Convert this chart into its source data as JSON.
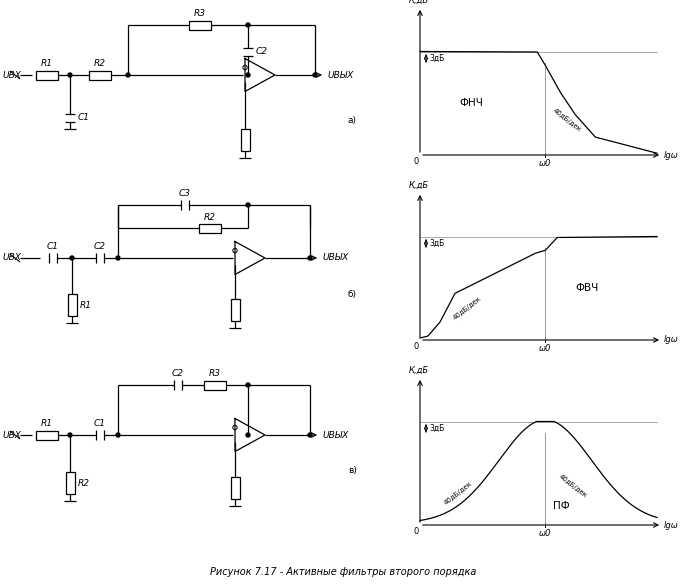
{
  "bg_color": "#ffffff",
  "title": "Рисунок 7.17 - Активные фильтры второго порядка",
  "labels": [
    "а)",
    "б)",
    "в)"
  ],
  "graph_labels": {
    "k_db": "К,дБ",
    "3db": "3дБ",
    "40db_dec": "40дБ/дек",
    "w0": "ω0",
    "lg_w": "lgω",
    "fnch": "ФНЧ",
    "fvch": "ФВЧ",
    "pf": "ПФ"
  },
  "comp": {
    "u_in": "UВХ",
    "u_out": "UВЫХ",
    "R1": "R1",
    "R2": "R2",
    "R3": "R3",
    "C1": "C1",
    "C2": "C2",
    "C3": "C3"
  },
  "lw": 0.9,
  "fs": 6.5,
  "fig_w": 6.86,
  "fig_h": 5.88,
  "fig_dpi": 100
}
